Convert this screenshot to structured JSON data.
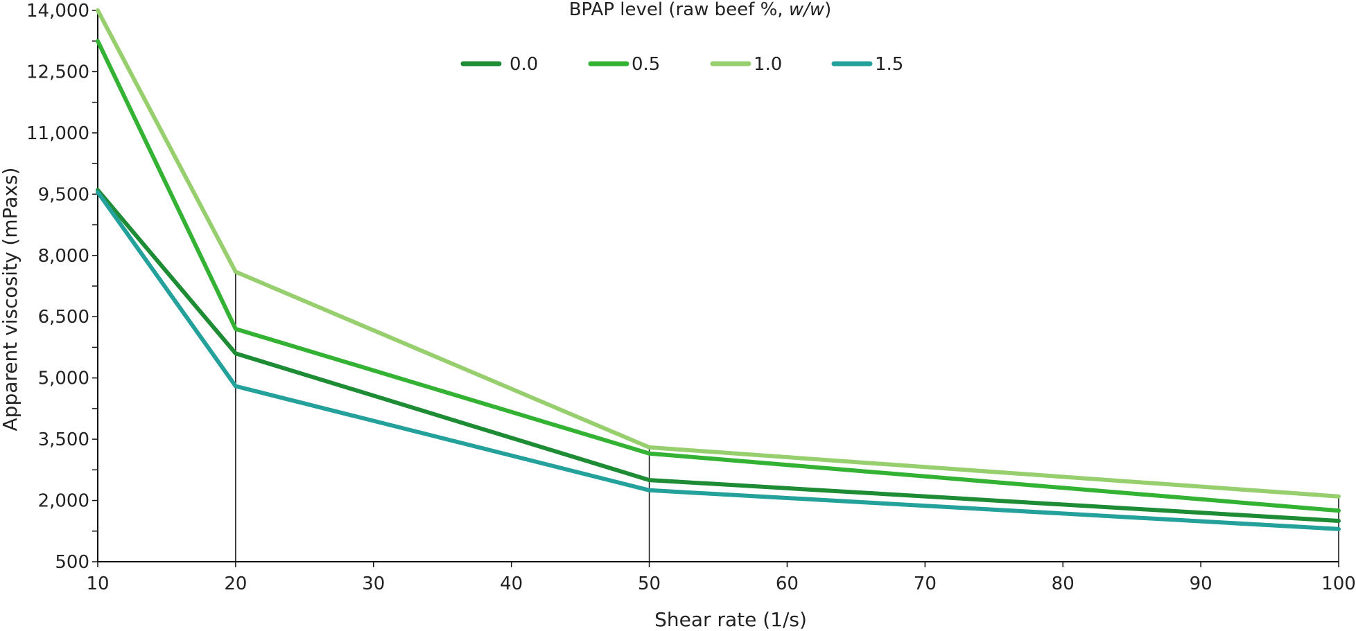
{
  "chart_data": {
    "type": "line",
    "legend_title": "BPAP level (raw beef %, ",
    "legend_title_italic": "w/w",
    "legend_title_end": ")",
    "xlabel": "Shear rate (1/s)",
    "ylabel": "Apparent viscosity (mPaxs)",
    "x_ticks": [
      "10",
      "20",
      "30",
      "40",
      "50",
      "60",
      "70",
      "80",
      "90",
      "100"
    ],
    "y_ticks": [
      "500",
      "2,000",
      "3,500",
      "5,000",
      "6,500",
      "8,000",
      "9,500",
      "11,000",
      "12,500",
      "14,000"
    ],
    "y_tick_values": [
      500,
      2000,
      3500,
      5000,
      6500,
      8000,
      9500,
      11000,
      12500,
      14000
    ],
    "ylim": [
      500,
      14000
    ],
    "x": [
      10,
      20,
      50,
      100
    ],
    "series": [
      {
        "name": "0.0",
        "color": "#1e8c35",
        "values": [
          9600,
          5600,
          2500,
          1500
        ]
      },
      {
        "name": "0.5",
        "color": "#34b233",
        "values": [
          13250,
          6200,
          3150,
          1750
        ]
      },
      {
        "name": "1.0",
        "color": "#97cf6e",
        "values": [
          14000,
          7600,
          3300,
          2100
        ]
      },
      {
        "name": "1.5",
        "color": "#23a19a",
        "values": [
          9550,
          4800,
          2250,
          1300
        ]
      }
    ],
    "error_bar_x": [
      20,
      50,
      100
    ],
    "legend_position": "top-center",
    "grid": false
  }
}
